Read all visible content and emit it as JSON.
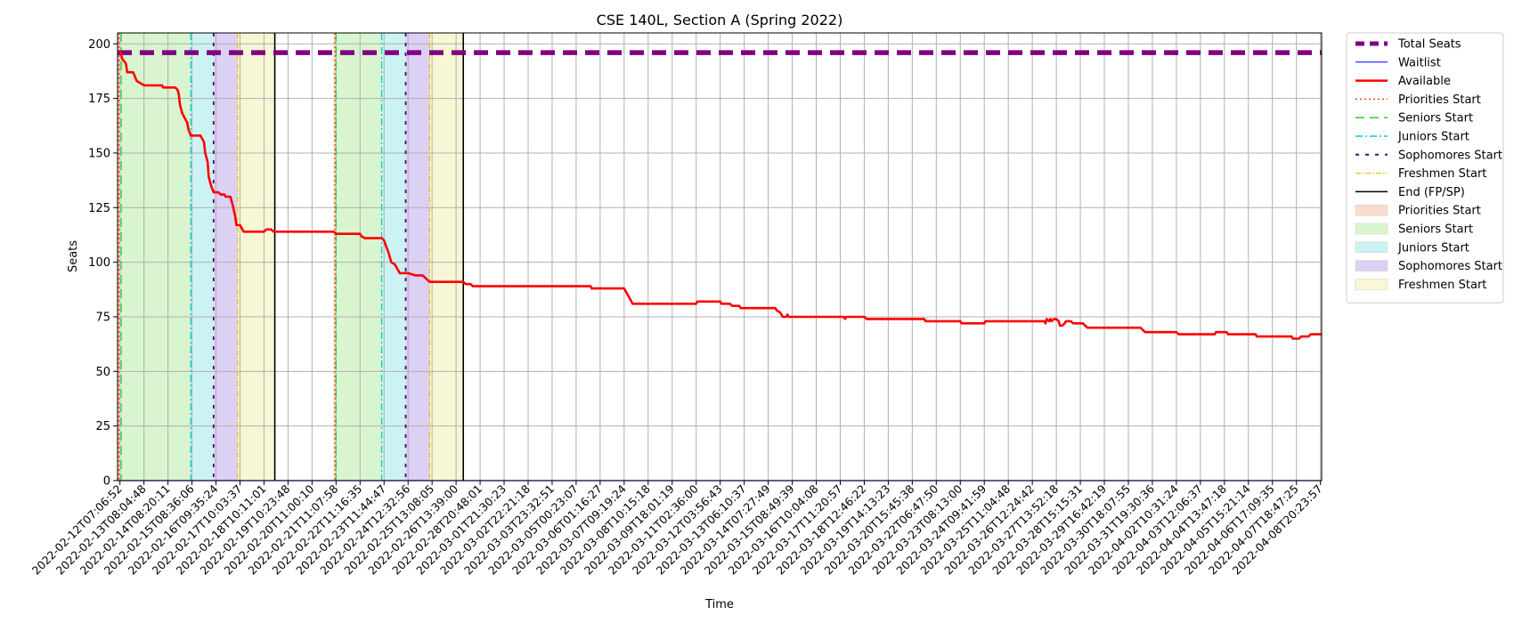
{
  "chart_data": {
    "type": "line",
    "title": "CSE 140L, Section A (Spring 2022)",
    "xlabel": "Time",
    "ylabel": "Seats",
    "ylim": [
      0,
      205
    ],
    "yticks": [
      0,
      25,
      50,
      75,
      100,
      125,
      150,
      175,
      200
    ],
    "grid": true,
    "legend_position": "outside-right",
    "x_tick_labels": [
      "2022-02-12T07:06:52",
      "2022-02-13T08:04:48",
      "2022-02-14T08:20:11",
      "2022-02-15T08:36:06",
      "2022-02-16T09:35:24",
      "2022-02-17T10:03:37",
      "2022-02-18T10:11:01",
      "2022-02-19T10:23:48",
      "2022-02-20T11:00:10",
      "2022-02-21T11:07:58",
      "2022-02-22T11:16:35",
      "2022-02-23T11:44:47",
      "2022-02-24T12:32:56",
      "2022-02-25T13:08:05",
      "2022-02-26T13:39:00",
      "2022-02-28T20:48:01",
      "2022-03-01T21:30:23",
      "2022-03-02T22:21:18",
      "2022-03-03T23:32:51",
      "2022-03-05T00:23:07",
      "2022-03-06T01:16:27",
      "2022-03-07T09:19:24",
      "2022-03-08T10:15:18",
      "2022-03-09T18:01:19",
      "2022-03-11T02:36:00",
      "2022-03-12T03:56:43",
      "2022-03-13T06:10:37",
      "2022-03-14T07:27:49",
      "2022-03-15T08:49:39",
      "2022-03-16T10:04:08",
      "2022-03-17T11:20:57",
      "2022-03-18T12:46:22",
      "2022-03-19T14:13:23",
      "2022-03-20T15:45:38",
      "2022-03-22T06:47:50",
      "2022-03-23T08:13:00",
      "2022-03-24T09:41:59",
      "2022-03-25T11:04:48",
      "2022-03-26T12:24:42",
      "2022-03-27T13:52:18",
      "2022-03-28T15:15:31",
      "2022-03-29T16:42:19",
      "2022-03-30T18:07:55",
      "2022-03-31T19:30:36",
      "2022-04-02T10:31:24",
      "2022-04-03T12:06:37",
      "2022-04-04T13:47:18",
      "2022-04-05T15:21:14",
      "2022-04-06T17:09:35",
      "2022-04-07T18:47:25",
      "2022-04-08T20:23:57"
    ],
    "x_index_range": [
      -0.1,
      50.05
    ],
    "series": [
      {
        "name": "Total Seats",
        "color": "#800080",
        "style": "dashed",
        "points": [
          [
            -0.1,
            196
          ],
          [
            50.05,
            196
          ]
        ]
      },
      {
        "name": "Waitlist",
        "color": "#0000ff",
        "style": "solid",
        "points": [
          [
            -0.1,
            0
          ],
          [
            50.05,
            0
          ]
        ]
      },
      {
        "name": "Available",
        "color": "#ff0000",
        "style": "solid",
        "points": [
          [
            0,
            197
          ],
          [
            0.1,
            193
          ],
          [
            0.25,
            191
          ],
          [
            0.3,
            187
          ],
          [
            0.55,
            187
          ],
          [
            0.7,
            183
          ],
          [
            0.85,
            182
          ],
          [
            1.0,
            181
          ],
          [
            1.5,
            181
          ],
          [
            1.75,
            181
          ],
          [
            1.8,
            180
          ],
          [
            2.2,
            180
          ],
          [
            2.3,
            180
          ],
          [
            2.4,
            179
          ],
          [
            2.45,
            177
          ],
          [
            2.5,
            172
          ],
          [
            2.6,
            168
          ],
          [
            2.7,
            166
          ],
          [
            2.8,
            164
          ],
          [
            2.85,
            161
          ],
          [
            2.95,
            158
          ],
          [
            3.35,
            158
          ],
          [
            3.4,
            157
          ],
          [
            3.5,
            155
          ],
          [
            3.55,
            150
          ],
          [
            3.65,
            146
          ],
          [
            3.7,
            139
          ],
          [
            3.8,
            135
          ],
          [
            3.9,
            132
          ],
          [
            4.1,
            132
          ],
          [
            4.2,
            131
          ],
          [
            4.35,
            131
          ],
          [
            4.4,
            130
          ],
          [
            4.6,
            130
          ],
          [
            4.7,
            126
          ],
          [
            4.8,
            121
          ],
          [
            4.85,
            117
          ],
          [
            5.0,
            117
          ],
          [
            5.15,
            114
          ],
          [
            5.6,
            114
          ],
          [
            5.9,
            114
          ],
          [
            6.0,
            114
          ],
          [
            6.1,
            115
          ],
          [
            6.3,
            115
          ],
          [
            6.4,
            114
          ],
          [
            7.0,
            114
          ],
          [
            8.0,
            114
          ],
          [
            8.9,
            114
          ],
          [
            9.0,
            113
          ],
          [
            10.0,
            113
          ],
          [
            10.05,
            112
          ],
          [
            10.2,
            111
          ],
          [
            10.9,
            111
          ],
          [
            11.0,
            110
          ],
          [
            11.1,
            107
          ],
          [
            11.2,
            104
          ],
          [
            11.3,
            100
          ],
          [
            11.45,
            99
          ],
          [
            11.55,
            97
          ],
          [
            11.65,
            95
          ],
          [
            12.0,
            95
          ],
          [
            12.3,
            94
          ],
          [
            12.6,
            94
          ],
          [
            12.7,
            93
          ],
          [
            12.8,
            92
          ],
          [
            12.9,
            91
          ],
          [
            13.3,
            91
          ],
          [
            14.0,
            91
          ],
          [
            14.3,
            91
          ],
          [
            14.4,
            90
          ],
          [
            14.55,
            90
          ],
          [
            14.6,
            90
          ],
          [
            14.7,
            89
          ],
          [
            15.0,
            89
          ],
          [
            17.0,
            89
          ],
          [
            19.0,
            89
          ],
          [
            19.6,
            89
          ],
          [
            19.65,
            88
          ],
          [
            21.0,
            88
          ],
          [
            21.05,
            87
          ],
          [
            21.15,
            85
          ],
          [
            21.25,
            83
          ],
          [
            21.35,
            81
          ],
          [
            22.0,
            81
          ],
          [
            23.0,
            81
          ],
          [
            24.0,
            81
          ],
          [
            24.05,
            82
          ],
          [
            25.0,
            82
          ],
          [
            25.05,
            81
          ],
          [
            25.4,
            81
          ],
          [
            25.5,
            80
          ],
          [
            25.8,
            80
          ],
          [
            25.85,
            79
          ],
          [
            27.0,
            79
          ],
          [
            27.3,
            79
          ],
          [
            27.35,
            78
          ],
          [
            27.5,
            77
          ],
          [
            27.6,
            75
          ],
          [
            27.75,
            75
          ],
          [
            27.8,
            76
          ],
          [
            27.85,
            75
          ],
          [
            29.0,
            75
          ],
          [
            30.0,
            75
          ],
          [
            30.15,
            75
          ],
          [
            30.2,
            74
          ],
          [
            30.25,
            75
          ],
          [
            31.0,
            75
          ],
          [
            31.1,
            74
          ],
          [
            33.0,
            74
          ],
          [
            33.5,
            74
          ],
          [
            33.55,
            73
          ],
          [
            35.0,
            73
          ],
          [
            35.05,
            72
          ],
          [
            36.0,
            72
          ],
          [
            36.05,
            73
          ],
          [
            38.0,
            73
          ],
          [
            38.5,
            73
          ],
          [
            38.55,
            72
          ],
          [
            38.6,
            74
          ],
          [
            38.7,
            73
          ],
          [
            38.75,
            74
          ],
          [
            38.8,
            73
          ],
          [
            38.9,
            74
          ],
          [
            39.0,
            74
          ],
          [
            39.1,
            73
          ],
          [
            39.15,
            71
          ],
          [
            39.25,
            71
          ],
          [
            39.35,
            72
          ],
          [
            39.4,
            73
          ],
          [
            39.6,
            73
          ],
          [
            39.7,
            72
          ],
          [
            40.1,
            72
          ],
          [
            40.2,
            71
          ],
          [
            40.3,
            70
          ],
          [
            41.0,
            70
          ],
          [
            42.0,
            70
          ],
          [
            42.5,
            70
          ],
          [
            42.6,
            69
          ],
          [
            42.7,
            68
          ],
          [
            43.0,
            68
          ],
          [
            44.0,
            68
          ],
          [
            44.1,
            67
          ],
          [
            45.0,
            67
          ],
          [
            45.6,
            67
          ],
          [
            45.65,
            68
          ],
          [
            46.1,
            68
          ],
          [
            46.15,
            67
          ],
          [
            47.0,
            67
          ],
          [
            47.3,
            67
          ],
          [
            47.35,
            66
          ],
          [
            48.0,
            66
          ],
          [
            48.8,
            66
          ],
          [
            48.85,
            65
          ],
          [
            49.1,
            65
          ],
          [
            49.2,
            66
          ],
          [
            49.5,
            66
          ],
          [
            49.6,
            67
          ],
          [
            50.05,
            67
          ]
        ]
      }
    ],
    "phases": [
      {
        "name": "Priorities Start",
        "spans": [
          [
            -0.1,
            0.05
          ],
          [
            8.9,
            9.0
          ]
        ]
      },
      {
        "name": "Seniors Start",
        "spans": [
          [
            0.05,
            2.95
          ],
          [
            9.0,
            10.9
          ]
        ]
      },
      {
        "name": "Juniors Start",
        "spans": [
          [
            2.95,
            3.9
          ],
          [
            10.9,
            11.9
          ]
        ]
      },
      {
        "name": "Sophomores Start",
        "spans": [
          [
            3.9,
            4.9
          ],
          [
            11.9,
            12.9
          ]
        ]
      },
      {
        "name": "Freshmen Start",
        "spans": [
          [
            4.9,
            6.45
          ],
          [
            12.9,
            14.3
          ]
        ]
      }
    ],
    "phase_start_lines": [
      {
        "name": "Priorities Start",
        "color": "#ff4500",
        "style": "dotted",
        "x": [
          -0.05,
          8.95
        ]
      },
      {
        "name": "Seniors Start",
        "color": "#32cd32",
        "style": "dashed",
        "x": [
          0.05,
          9.0
        ]
      },
      {
        "name": "Juniors Start",
        "color": "#00ced1",
        "style": "dashdot",
        "x": [
          2.95,
          10.9
        ]
      },
      {
        "name": "Sophomores Start",
        "color": "#4b0082",
        "style": "loosedashed",
        "x": [
          3.9,
          11.9
        ]
      },
      {
        "name": "Freshmen Start",
        "color": "#e6c700",
        "style": "dashdotted-thin",
        "x": [
          4.9,
          12.9
        ]
      }
    ],
    "end_lines": {
      "name": "End (FP/SP)",
      "color": "#000000",
      "x": [
        6.45,
        14.3
      ]
    },
    "legend": [
      {
        "label": "Total Seats",
        "kind": "line",
        "color": "#800080",
        "style": "dashed",
        "width": 5
      },
      {
        "label": "Waitlist",
        "kind": "line",
        "color": "#0000ff",
        "style": "solid",
        "width": 1
      },
      {
        "label": "Available",
        "kind": "line",
        "color": "#ff0000",
        "style": "solid",
        "width": 2.5
      },
      {
        "label": "Priorities Start",
        "kind": "line",
        "color": "#ff4500",
        "style": "dotted",
        "width": 1.5
      },
      {
        "label": "Seniors Start",
        "kind": "line",
        "color": "#32cd32",
        "style": "dashed",
        "width": 1.5
      },
      {
        "label": "Juniors Start",
        "kind": "line",
        "color": "#00ced1",
        "style": "dashdot",
        "width": 1.5
      },
      {
        "label": "Sophomores Start",
        "kind": "line",
        "color": "#4b0082",
        "style": "loosedashed",
        "width": 2
      },
      {
        "label": "Freshmen Start",
        "kind": "line",
        "color": "#e6c700",
        "style": "dashdotted-thin",
        "width": 1.2
      },
      {
        "label": "End (FP/SP)",
        "kind": "line",
        "color": "#000000",
        "style": "solid",
        "width": 1.5
      },
      {
        "label": "Priorities Start",
        "kind": "patch",
        "color": "#f9dccc"
      },
      {
        "label": "Seniors Start",
        "kind": "patch",
        "color": "#d8f5cf"
      },
      {
        "label": "Juniors Start",
        "kind": "patch",
        "color": "#ccf3f3"
      },
      {
        "label": "Sophomores Start",
        "kind": "patch",
        "color": "#ddd0f5"
      },
      {
        "label": "Freshmen Start",
        "kind": "patch",
        "color": "#f7f7d6"
      }
    ]
  }
}
